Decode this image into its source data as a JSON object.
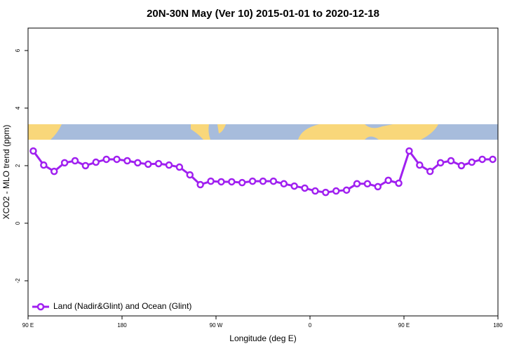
{
  "chart_data": {
    "type": "line",
    "title": "20N-30N May (Ver 10)   2015-01-01 to 2020-12-18",
    "x_label": "Longitude (deg E)",
    "y_label": "XCO2 - MLO trend (ppm)",
    "x": [
      95,
      105,
      115,
      125,
      135,
      145,
      155,
      165,
      175,
      185,
      195,
      205,
      215,
      225,
      235,
      245,
      255,
      265,
      275,
      285,
      295,
      305,
      315,
      325,
      335,
      345,
      355,
      365,
      375,
      385,
      395,
      405,
      415,
      425,
      435,
      445,
      455,
      465,
      475,
      485,
      495,
      505,
      515,
      525,
      535
    ],
    "series": [
      {
        "name": "Land (Nadir&Glint) and Ocean (Glint)",
        "color": "#a020f0",
        "values": [
          2.51,
          2.02,
          1.8,
          2.1,
          2.17,
          2.0,
          2.12,
          2.22,
          2.22,
          2.17,
          2.1,
          2.05,
          2.07,
          2.02,
          1.95,
          1.68,
          1.34,
          1.46,
          1.44,
          1.44,
          1.41,
          1.46,
          1.46,
          1.46,
          1.37,
          1.29,
          1.22,
          1.12,
          1.07,
          1.12,
          1.15,
          1.37,
          1.37,
          1.27,
          1.49,
          1.39,
          2.51,
          2.02,
          1.8,
          2.1,
          2.17,
          2.0,
          2.12,
          2.22,
          2.22
        ]
      }
    ],
    "xlim": [
      90,
      540
    ],
    "xticks": [
      {
        "value": 90,
        "label": "90 E"
      },
      180,
      {
        "value": 270,
        "label": "90 W"
      },
      {
        "value": 360,
        "label": "0"
      },
      {
        "value": 450,
        "label": "90 E"
      },
      {
        "value": 540,
        "label": "180"
      }
    ],
    "ylim": [
      -3.22,
      6.78
    ],
    "yticks": [
      -2,
      0,
      2,
      4,
      6
    ],
    "legend": "bottom left"
  }
}
